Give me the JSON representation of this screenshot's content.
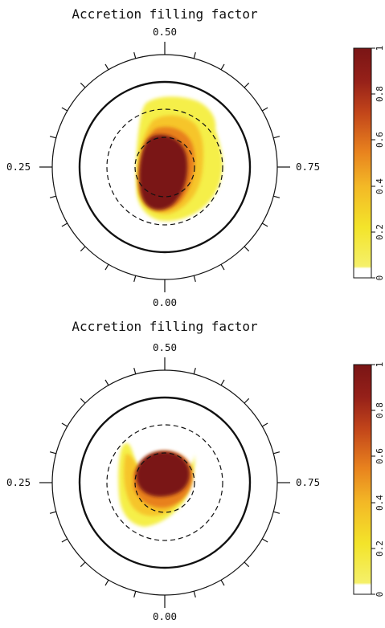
{
  "panels": [
    {
      "title": "Accretion filling factor",
      "phase_labels": {
        "top": "0.50",
        "left": "0.25",
        "right": "0.75",
        "bottom": "0.00"
      },
      "colorbar_ticks": [
        "0",
        "0.2",
        "0.4",
        "0.6",
        "0.8",
        "1"
      ]
    },
    {
      "title": "Accretion filling factor",
      "phase_labels": {
        "top": "0.50",
        "left": "0.25",
        "right": "0.75",
        "bottom": "0.00"
      },
      "colorbar_ticks": [
        "0",
        "0.2",
        "0.4",
        "0.6",
        "0.8",
        "1"
      ]
    }
  ],
  "colors": {
    "low": "#f5ef4a",
    "mid_low": "#f6c52a",
    "mid": "#e8811d",
    "mid_high": "#b8421a",
    "high": "#7a1616"
  }
}
